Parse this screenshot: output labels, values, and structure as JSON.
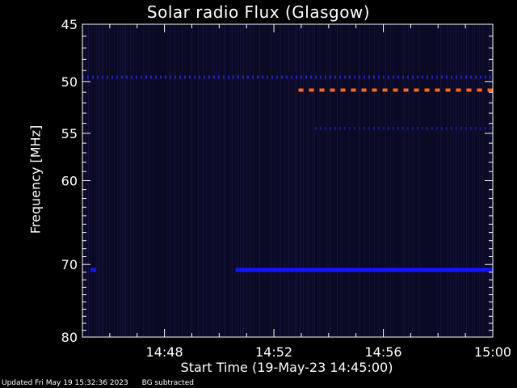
{
  "chart_data": {
    "type": "heatmap",
    "title": "Solar radio Flux (Glasgow)",
    "xlabel": "Start Time (19-May-23 14:45:00)",
    "ylabel": "Frequency [MHz]",
    "x_range_minutes": [
      0,
      15
    ],
    "x_ticks": [
      {
        "minute": 3,
        "label": "14:48"
      },
      {
        "minute": 7,
        "label": "14:52"
      },
      {
        "minute": 11,
        "label": "14:56"
      },
      {
        "minute": 15,
        "label": "15:00"
      }
    ],
    "y_scale": "log",
    "ylim": [
      45,
      80
    ],
    "y_inverted": true,
    "y_ticks": [
      45,
      50,
      55,
      60,
      70,
      80
    ],
    "background_color": "#0a0a24",
    "emission_lines": [
      {
        "freq_mhz": 49.6,
        "start_min": 0,
        "end_min": 15,
        "color": "#2020c8",
        "style": "dotted"
      },
      {
        "freq_mhz": 50.8,
        "start_min": 7.9,
        "end_min": 15,
        "color": "#ff6a20",
        "style": "dashed"
      },
      {
        "freq_mhz": 54.5,
        "start_min": 8.5,
        "end_min": 15,
        "color": "#1a1a80",
        "style": "dotted"
      },
      {
        "freq_mhz": 70.7,
        "start_min": 5.6,
        "end_min": 15,
        "color": "#1414ff",
        "style": "solid"
      },
      {
        "freq_mhz": 70.7,
        "start_min": 0.3,
        "end_min": 0.5,
        "color": "#1414ff",
        "style": "solid"
      }
    ]
  },
  "footer": {
    "updated": "Updated Fri May 19 15:32:36 2023",
    "note": "BG subtracted"
  }
}
